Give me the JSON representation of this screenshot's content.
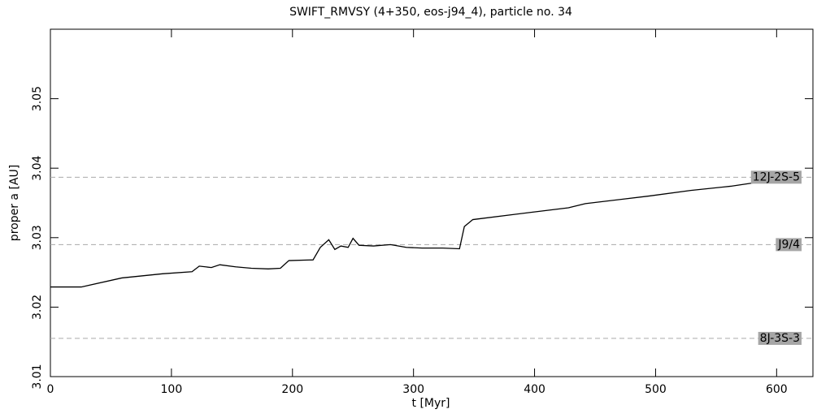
{
  "chart_data": {
    "type": "line",
    "title": "SWIFT_RMVSY (4+350, eos-j94_4), particle no. 34",
    "x_label": "t [Myr]",
    "y_label": "proper a [AU]",
    "xlim": [
      0,
      630
    ],
    "ylim": [
      3.01,
      3.06
    ],
    "xticks": [
      0,
      100,
      200,
      300,
      400,
      500,
      600
    ],
    "yticks": [
      3.01,
      3.02,
      3.03,
      3.04,
      3.05
    ],
    "series": [
      {
        "color": "#000000",
        "x": [
          0,
          25.5,
          59,
          92.6,
          117,
          123,
          133,
          140,
          153,
          166,
          180,
          190,
          197,
          217,
          223,
          230,
          235,
          240,
          246,
          250,
          255,
          267,
          281,
          294,
          307,
          324,
          338,
          342,
          349,
          395,
          428,
          442,
          495,
          529,
          562,
          589,
          603
        ],
        "values": [
          3.0229,
          3.0229,
          3.0242,
          3.0248,
          3.0251,
          3.0259,
          3.0257,
          3.0261,
          3.0258,
          3.0256,
          3.0255,
          3.0256,
          3.0267,
          3.0268,
          3.0286,
          3.0297,
          3.0283,
          3.0288,
          3.0286,
          3.0299,
          3.0289,
          3.0288,
          3.029,
          3.0286,
          3.0285,
          3.0285,
          3.0284,
          3.0316,
          3.0326,
          3.0336,
          3.0343,
          3.0349,
          3.036,
          3.0368,
          3.0374,
          3.0381,
          3.0385
        ]
      }
    ],
    "resonances": [
      {
        "label": "12J-2S-5",
        "value": 3.0387
      },
      {
        "label": "J9/4",
        "value": 3.029
      },
      {
        "label": "8J-3S-3",
        "value": 3.0155
      }
    ]
  }
}
